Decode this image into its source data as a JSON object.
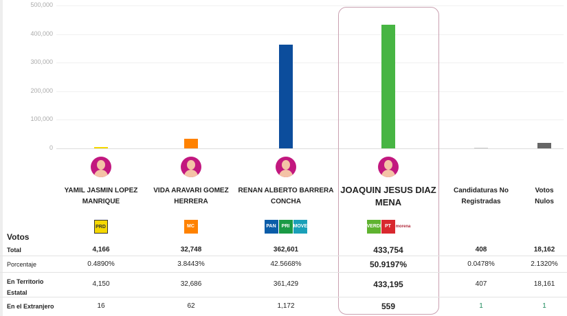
{
  "chart_data": {
    "type": "bar",
    "ylim": [
      0,
      500000
    ],
    "yticks": [
      "500,000",
      "400,000",
      "300,000",
      "200,000",
      "100,000",
      "0"
    ],
    "categories": [
      "YAMIL JASMIN LOPEZ MANRIQUE",
      "VIDA ARAVARI GOMEZ HERRERA",
      "RENAN ALBERTO BARRERA CONCHA",
      "JOAQUIN JESUS DIAZ MENA",
      "Candidaturas No Registradas",
      "Votos Nulos"
    ],
    "values": [
      4166,
      32748,
      362601,
      433754,
      408,
      18162
    ],
    "colors": [
      "#f5d800",
      "#ff8200",
      "#0c4d9c",
      "#47b543",
      "#cccccc",
      "#666666"
    ]
  },
  "candidates": [
    {
      "name1": "YAMIL JASMIN LOPEZ",
      "name2": "MANRIQUE",
      "parties": [
        "PRD"
      ]
    },
    {
      "name1": "VIDA ARAVARI GOMEZ",
      "name2": "HERRERA",
      "parties": [
        "MC"
      ]
    },
    {
      "name1": "RENAN ALBERTO BARRERA",
      "name2": "CONCHA",
      "parties": [
        "PAN",
        "PRI",
        "MOVER"
      ]
    },
    {
      "name1": "JOAQUIN JESUS DIAZ",
      "name2": "MENA",
      "parties": [
        "VERDE",
        "PT",
        "morena"
      ]
    },
    {
      "name1": "Candidaturas No",
      "name2": "Registradas"
    },
    {
      "name1": "Votos",
      "name2": "Nulos"
    }
  ],
  "table": {
    "title": "Votos",
    "rows": [
      {
        "label": "Total",
        "values": [
          "4,166",
          "32,748",
          "362,601",
          "433,754",
          "408",
          "18,162"
        ]
      },
      {
        "label": "Porcentaje",
        "values": [
          "0.4890%",
          "3.8443%",
          "42.5668%",
          "50.9197%",
          "0.0478%",
          "2.1320%"
        ]
      },
      {
        "label1": "En Territorio",
        "label2": "Estatal",
        "values": [
          "4,150",
          "32,686",
          "361,429",
          "433,195",
          "407",
          "18,161"
        ]
      },
      {
        "label": "En el Extranjero",
        "values": [
          "16",
          "62",
          "1,172",
          "559",
          "1",
          "1"
        ]
      }
    ]
  }
}
